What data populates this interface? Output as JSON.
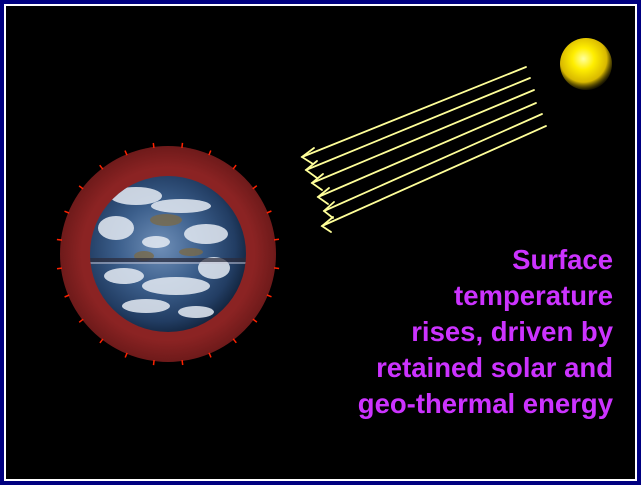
{
  "caption": {
    "lines": [
      "Surface",
      "temperature",
      "rises, driven by",
      "retained solar and",
      "geo-thermal energy"
    ]
  },
  "colors": {
    "frame": "#000080",
    "background": "#000000",
    "atmosphere": "#8b2323",
    "heat_ticks": "#ff2200",
    "sun": "#ffee00",
    "sunlight_arrows": "#ffff99",
    "caption_text": "#cc33ff"
  },
  "icons": {
    "sun": "sun-icon",
    "earth": "earth-icon"
  }
}
